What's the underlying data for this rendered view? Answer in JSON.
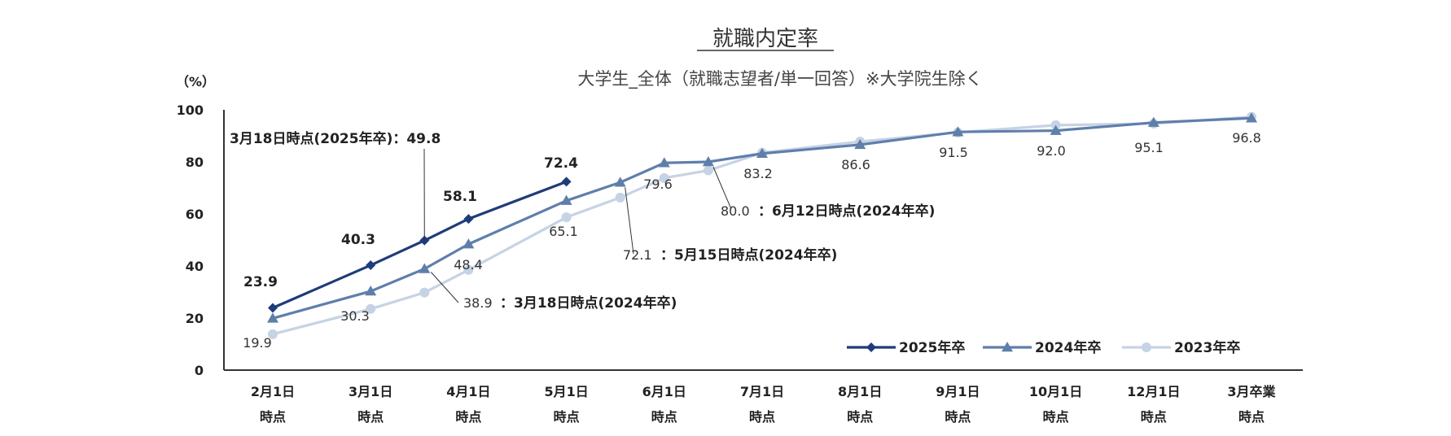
{
  "chart_data": {
    "type": "line",
    "title": "就職内定率",
    "subtitle": "大学生_全体（就職志望者/単一回答）※大学院生除く",
    "ylabel": "（%）",
    "ylim": [
      0,
      100
    ],
    "yticks": [
      0,
      20,
      40,
      60,
      80,
      100
    ],
    "categories": [
      [
        "2月1日",
        "時点"
      ],
      [
        "3月1日",
        "時点"
      ],
      [
        "4月1日",
        "時点"
      ],
      [
        "5月1日",
        "時点"
      ],
      [
        "6月1日",
        "時点"
      ],
      [
        "7月1日",
        "時点"
      ],
      [
        "8月1日",
        "時点"
      ],
      [
        "9月1日",
        "時点"
      ],
      [
        "10月1日",
        "時点"
      ],
      [
        "12月1日",
        "時点"
      ],
      [
        "3月卒業",
        "時点"
      ]
    ],
    "series": [
      {
        "name": "2025年卒",
        "color": "#1f3c7a",
        "marker": "diamond",
        "points": [
          [
            0,
            23.9
          ],
          [
            1,
            40.3
          ],
          [
            1.55,
            49.8
          ],
          [
            2,
            58.1
          ],
          [
            3,
            72.4
          ]
        ]
      },
      {
        "name": "2024年卒",
        "color": "#5f7fab",
        "marker": "triangle",
        "points": [
          [
            0,
            19.9
          ],
          [
            1,
            30.3
          ],
          [
            1.55,
            38.9
          ],
          [
            2,
            48.4
          ],
          [
            3,
            65.1
          ],
          [
            3.55,
            72.1
          ],
          [
            4,
            79.6
          ],
          [
            4.45,
            80.0
          ],
          [
            5,
            83.2
          ],
          [
            6,
            86.6
          ],
          [
            7,
            91.5
          ],
          [
            8,
            92.0
          ],
          [
            9,
            95.1
          ],
          [
            10,
            96.8
          ]
        ]
      },
      {
        "name": "2023年卒",
        "color": "#c6d3e4",
        "marker": "circle",
        "points": [
          [
            0,
            13.8
          ],
          [
            1,
            23.5
          ],
          [
            1.55,
            29.8
          ],
          [
            2,
            38.5
          ],
          [
            3,
            58.7
          ],
          [
            3.55,
            66.3
          ],
          [
            4,
            73.8
          ],
          [
            4.45,
            76.7
          ],
          [
            5,
            83.5
          ],
          [
            6,
            87.8
          ],
          [
            7,
            91.3
          ],
          [
            8,
            94.1
          ],
          [
            9,
            94.7
          ],
          [
            10,
            97.3
          ]
        ]
      }
    ],
    "annotations": [
      {
        "text": "23.9",
        "style": "bold",
        "series": 0
      },
      {
        "text": "40.3",
        "style": "bold",
        "series": 0
      },
      {
        "text": "58.1",
        "style": "bold",
        "series": 0
      },
      {
        "text": "72.4",
        "style": "bold",
        "series": 0
      },
      {
        "text": "3月18日時点(2025年卒)：49.8",
        "style": "bold",
        "series": 0
      },
      {
        "text": "19.9",
        "style": "plain"
      },
      {
        "text": "30.3",
        "style": "plain"
      },
      {
        "text": "48.4",
        "style": "plain"
      },
      {
        "text": "65.1",
        "style": "plain"
      },
      {
        "text": "79.6",
        "style": "plain"
      },
      {
        "text": "83.2",
        "style": "plain"
      },
      {
        "text": "86.6",
        "style": "plain"
      },
      {
        "text": "91.5",
        "style": "plain"
      },
      {
        "text": "92.0",
        "style": "plain"
      },
      {
        "text": "95.1",
        "style": "plain"
      },
      {
        "text": "96.8",
        "style": "plain"
      },
      {
        "text": "38.9",
        "style": "plain"
      },
      {
        "text": "：3月18日時点(2024年卒)",
        "style": "bold"
      },
      {
        "text": "72.1",
        "style": "plain"
      },
      {
        "text": "：5月15日時点(2024年卒)",
        "style": "bold"
      },
      {
        "text": "80.0",
        "style": "plain"
      },
      {
        "text": "：6月12日時点(2024年卒)",
        "style": "bold"
      }
    ],
    "legend": {
      "position": "bottom-right",
      "items": [
        "2025年卒",
        "2024年卒",
        "2023年卒"
      ]
    }
  }
}
